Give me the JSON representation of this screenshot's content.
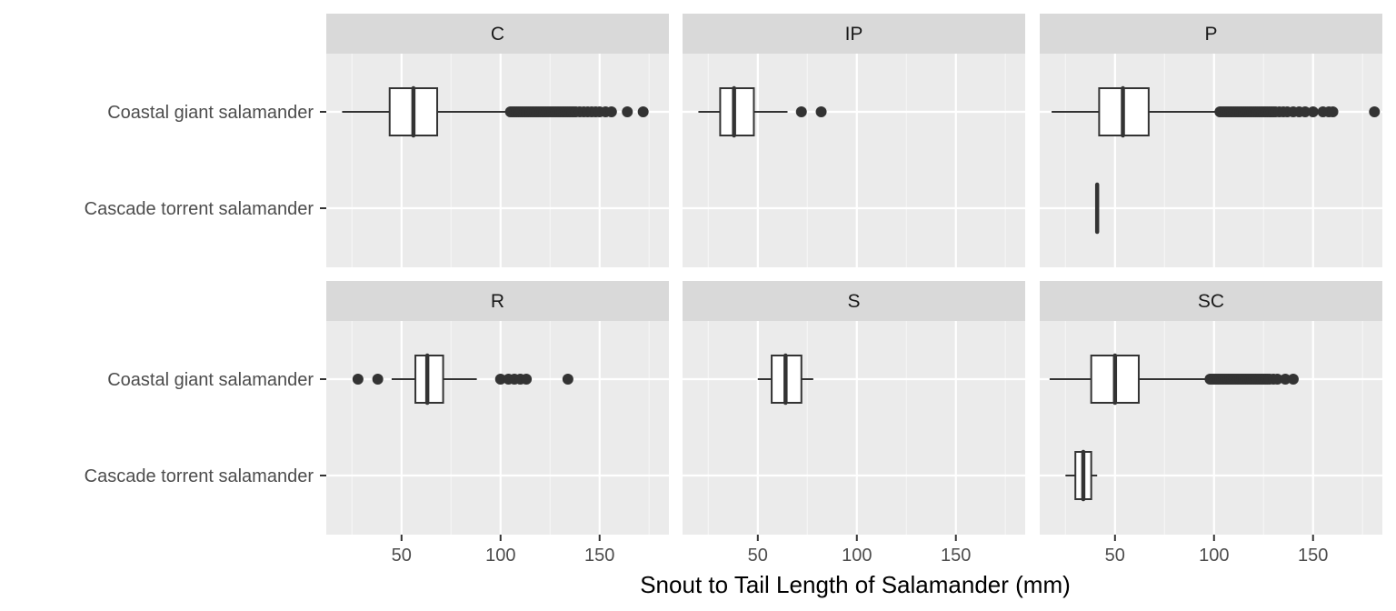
{
  "chart_data": {
    "type": "boxplot",
    "xlabel": "Snout to Tail Length of Salamander (mm)",
    "ylabel": "",
    "xlim": [
      12,
      185
    ],
    "x_ticks": [
      50,
      100,
      150
    ],
    "x_tick_labels": [
      "50",
      "100",
      "150"
    ],
    "categories": [
      "Coastal giant salamander",
      "Cascade torrent salamander"
    ],
    "grid": true,
    "facets": [
      {
        "label": "C",
        "boxes": [
          {
            "category": "Coastal giant salamander",
            "whisker_low": 20,
            "q1": 44,
            "median": 56,
            "q3": 68,
            "whisker_high": 104,
            "outliers": [
              105,
              106,
              107,
              108,
              109,
              110,
              111,
              112,
              113,
              114,
              115,
              116,
              117,
              118,
              119,
              120,
              121,
              122,
              123,
              124,
              125,
              126,
              127,
              128,
              129,
              130,
              131,
              132,
              133,
              134,
              135,
              136,
              137,
              138,
              140,
              142,
              144,
              146,
              148,
              150,
              153,
              156,
              164,
              172
            ]
          }
        ]
      },
      {
        "label": "IP",
        "boxes": [
          {
            "category": "Coastal giant salamander",
            "whisker_low": 20,
            "q1": 31,
            "median": 38,
            "q3": 48,
            "whisker_high": 65,
            "outliers": [
              72,
              82
            ]
          }
        ]
      },
      {
        "label": "P",
        "boxes": [
          {
            "category": "Coastal giant salamander",
            "whisker_low": 18,
            "q1": 42,
            "median": 54,
            "q3": 67,
            "whisker_high": 102,
            "outliers": [
              103,
              104,
              105,
              106,
              107,
              108,
              109,
              110,
              111,
              112,
              113,
              114,
              115,
              116,
              117,
              118,
              119,
              120,
              121,
              122,
              123,
              124,
              125,
              126,
              127,
              128,
              129,
              130,
              131,
              133,
              135,
              137,
              140,
              143,
              146,
              150,
              155,
              158,
              160,
              181
            ]
          },
          {
            "category": "Cascade torrent salamander",
            "whisker_low": 41,
            "q1": 41,
            "median": 41,
            "q3": 41,
            "whisker_high": 41,
            "outliers": []
          }
        ]
      },
      {
        "label": "R",
        "boxes": [
          {
            "category": "Coastal giant salamander",
            "whisker_low": 45,
            "q1": 57,
            "median": 63,
            "q3": 71,
            "whisker_high": 88,
            "outliers": [
              28,
              38,
              100,
              104,
              107,
              110,
              113,
              134
            ]
          }
        ]
      },
      {
        "label": "S",
        "boxes": [
          {
            "category": "Coastal giant salamander",
            "whisker_low": 50,
            "q1": 57,
            "median": 64,
            "q3": 72,
            "whisker_high": 78,
            "outliers": []
          }
        ]
      },
      {
        "label": "SC",
        "boxes": [
          {
            "category": "Coastal giant salamander",
            "whisker_low": 17,
            "q1": 38,
            "median": 50,
            "q3": 62,
            "whisker_high": 97,
            "outliers": [
              98,
              99,
              100,
              101,
              102,
              103,
              104,
              105,
              106,
              107,
              108,
              109,
              110,
              111,
              112,
              113,
              114,
              115,
              116,
              117,
              118,
              119,
              120,
              121,
              122,
              123,
              124,
              125,
              126,
              127,
              128,
              130,
              132,
              136,
              140
            ]
          },
          {
            "category": "Cascade torrent salamander",
            "whisker_low": 25,
            "q1": 30,
            "median": 34,
            "q3": 38,
            "whisker_high": 41,
            "outliers": []
          }
        ]
      }
    ]
  }
}
